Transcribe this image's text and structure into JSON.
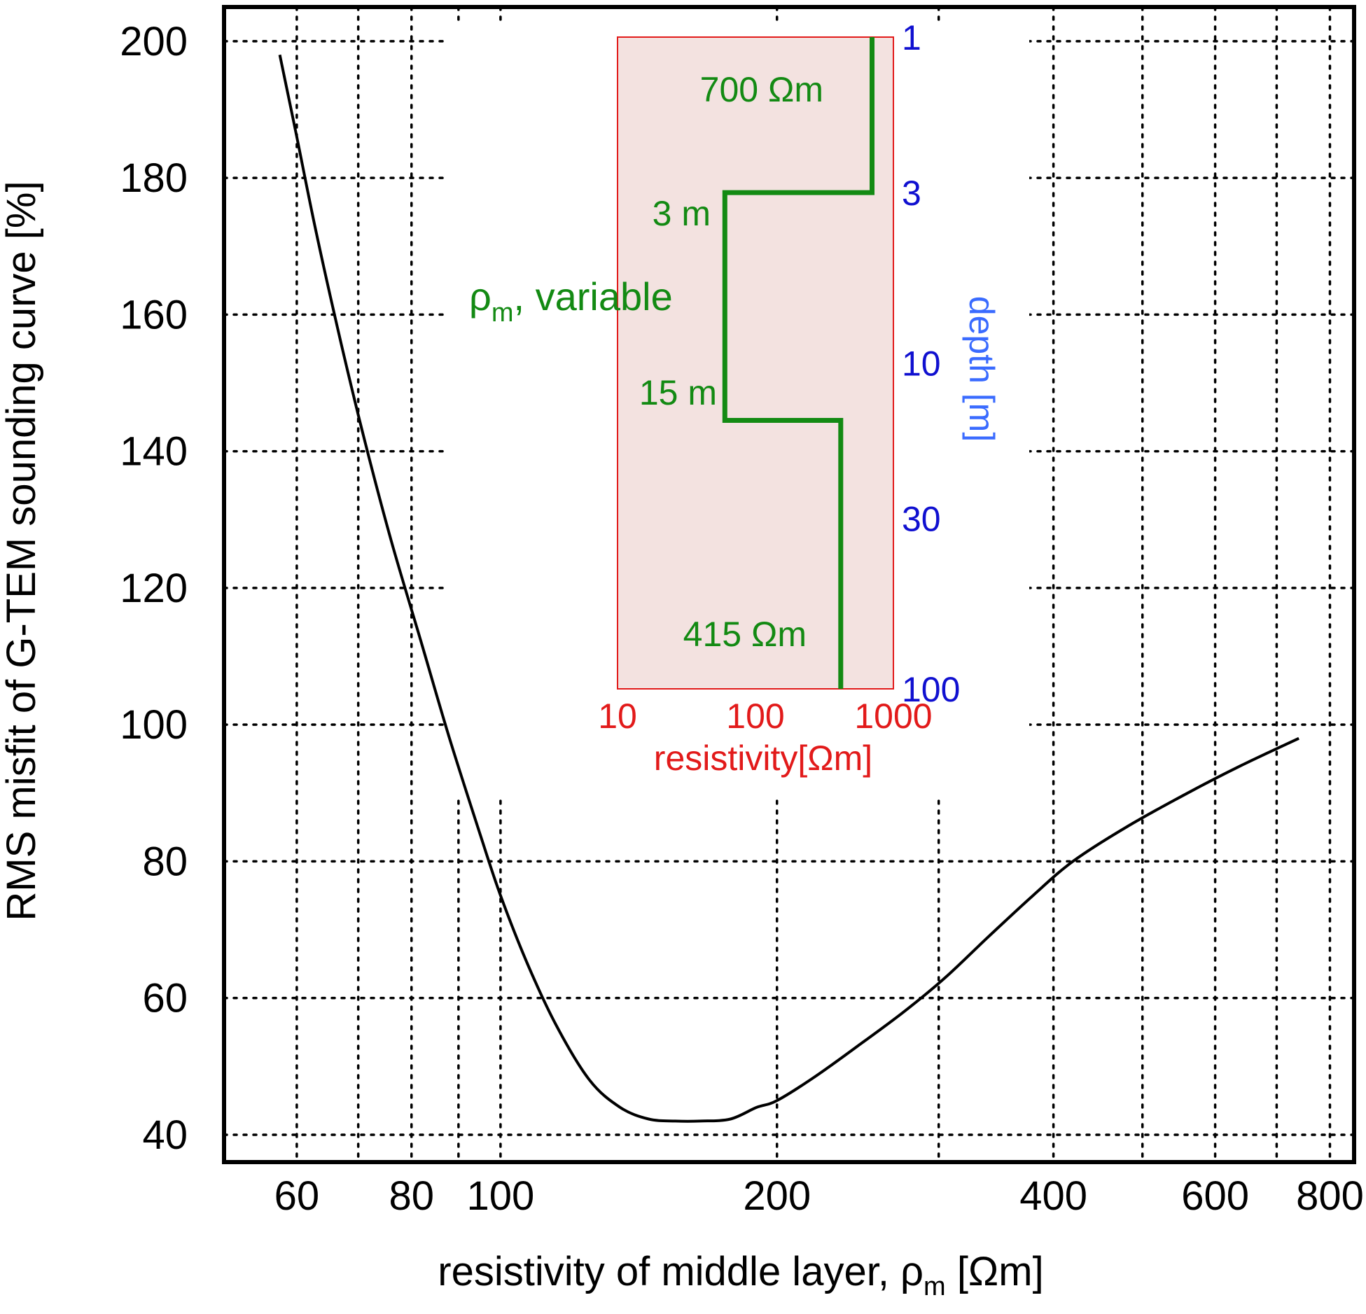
{
  "chart_data": [
    {
      "type": "line",
      "xlabel_main": "resistivity of middle layer, ρ",
      "xlabel_sub": "m",
      "xlabel_unit": " [Ωm]",
      "ylabel": "RMS misfit of G-TEM sounding curve [%]",
      "x_scale": "log",
      "xlim": [
        50,
        850
      ],
      "ylim": [
        36,
        205
      ],
      "x_ticks": [
        60,
        80,
        100,
        200,
        400,
        600,
        800
      ],
      "x_minor_gridlines": [
        70,
        90,
        300,
        500,
        700
      ],
      "y_ticks": [
        40,
        60,
        80,
        100,
        120,
        140,
        160,
        180,
        200
      ],
      "grid": true,
      "grid_style": "dotted",
      "series": [
        {
          "color": "#000000",
          "x": [
            57.5,
            60,
            63,
            67,
            71,
            76,
            82,
            88,
            95,
            100,
            107,
            115,
            125,
            135,
            145,
            155,
            165,
            178,
            190,
            200,
            220,
            245,
            275,
            305,
            340,
            380,
            420,
            480,
            560,
            640,
            740
          ],
          "y": [
            198,
            186,
            172,
            156,
            142,
            127,
            112,
            98,
            84,
            75,
            65,
            56,
            48,
            44,
            42.3,
            42,
            42,
            42.3,
            44,
            45,
            48.5,
            53,
            58,
            63,
            69,
            75,
            80,
            85,
            90,
            94,
            98
          ]
        }
      ]
    },
    {
      "type": "line",
      "title_rho": "ρ",
      "title_sub": "m",
      "title_rest": ", variable",
      "xlabel": "resistivity[Ωm]",
      "ylabel": "depth [m]",
      "x_scale": "log",
      "y_scale": "log",
      "xlim": [
        10,
        1000
      ],
      "ylim": [
        1,
        100
      ],
      "x_ticks": [
        10,
        100,
        1000
      ],
      "y_ticks": [
        1,
        3,
        10,
        30,
        100
      ],
      "annotations": [
        "700 Ωm",
        "3 m",
        "15 m",
        "415 Ωm"
      ],
      "background_color": "#f3e2e0",
      "frame_color": "#e21a1a",
      "series": [
        {
          "color": "#138a13",
          "profile_resistivity": [
            700,
            700,
            60,
            60,
            415,
            415
          ],
          "profile_depth": [
            1,
            3,
            3,
            15,
            15,
            100
          ]
        }
      ]
    }
  ]
}
